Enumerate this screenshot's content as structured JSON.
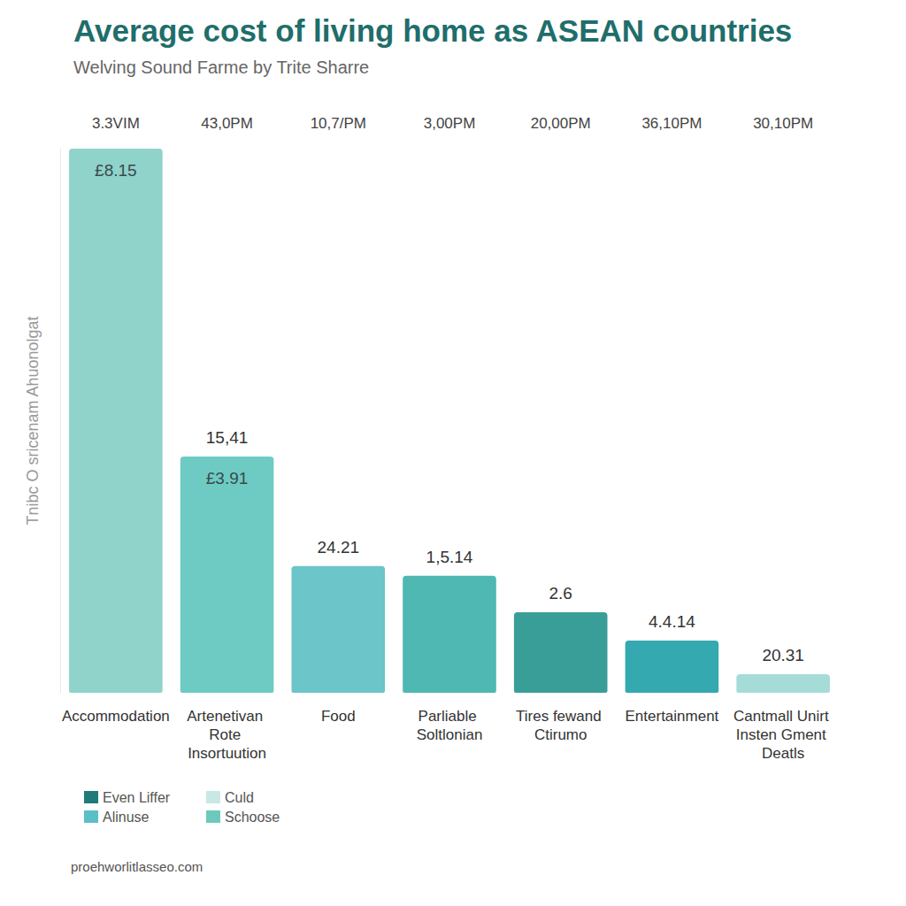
{
  "chart_data": {
    "type": "bar",
    "title": "Average cost of living home as ASEAN countries",
    "subtitle": "Welving Sound Farme by Trite Sharre",
    "y_label": "Tnibc O sricenam Ahuonolgat",
    "categories": [
      "Accommodation",
      "Artenetivan Rote Insortuution",
      "Food",
      "Parliable Soltlonian",
      "Tires fewand Ctirumo",
      "Entertainment",
      "Cantmall Unirt Insten Gment Deatls"
    ],
    "values": [
      100,
      43.4,
      23.3,
      21.5,
      14.8,
      9.6,
      3.4
    ],
    "colors": [
      "#8fd3cb",
      "#6ecbc4",
      "#6cc5c8",
      "#4fb8b2",
      "#3a9e98",
      "#35a9b0",
      "#a5dcd8"
    ],
    "column_headers": [
      "3.3VIM",
      "43,0PM",
      "10,7/PM",
      "3,00PM",
      "20,00PM",
      "36,10PM",
      "30,10PM"
    ],
    "labels_above": [
      {
        "category": "Artenetivan Rote Insortuution",
        "text": "15,41"
      },
      {
        "category": "Food",
        "text": "24.21"
      },
      {
        "category": "Parliable Soltlonian",
        "text": "1,5.14"
      },
      {
        "category": "Tires fewand Ctirumo",
        "text": "2.6"
      },
      {
        "category": "Entertainment",
        "text": "4.4.14"
      },
      {
        "category": "Cantmall Unirt Insten Gment Deatls",
        "text": "20.31"
      }
    ],
    "labels_inside": [
      {
        "category": "Accommodation",
        "text": "£8.15"
      },
      {
        "category": "Artenetivan Rote Insortuution",
        "text": "£3.91"
      }
    ],
    "legend_entries": [
      {
        "name": "Even Liffer",
        "color": "#1f7a78"
      },
      {
        "name": "Alinuse",
        "color": "#5bbfc7"
      },
      {
        "name": "Culd",
        "color": "#c8e8e6"
      },
      {
        "name": "Schoose",
        "color": "#6cc9bd"
      }
    ],
    "legend": "bottom-left",
    "ylim": [
      0,
      100
    ],
    "grid": false,
    "tick_labels": "x",
    "source": "proehworlitlasseo.com"
  }
}
